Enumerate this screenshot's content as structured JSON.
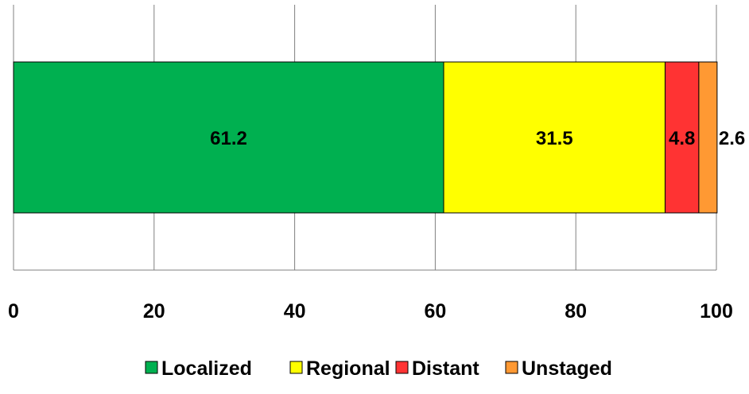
{
  "chart_data": {
    "type": "bar",
    "orientation": "horizontal",
    "stacked": true,
    "categories": [
      ""
    ],
    "series": [
      {
        "name": "Localized",
        "values": [
          61.2
        ],
        "label": "61.2",
        "color": "#00b050"
      },
      {
        "name": "Regional",
        "values": [
          31.5
        ],
        "label": "31.5",
        "color": "#ffff00"
      },
      {
        "name": "Distant",
        "values": [
          4.8
        ],
        "label": "4.8",
        "color": "#ff3333"
      },
      {
        "name": "Unstaged",
        "values": [
          2.6
        ],
        "label": "2.6",
        "color": "#ff9933"
      }
    ],
    "xticks": [
      "0",
      "20",
      "40",
      "60",
      "80",
      "100"
    ],
    "xlim": [
      0,
      100
    ],
    "grid": true,
    "legend_position": "bottom"
  }
}
